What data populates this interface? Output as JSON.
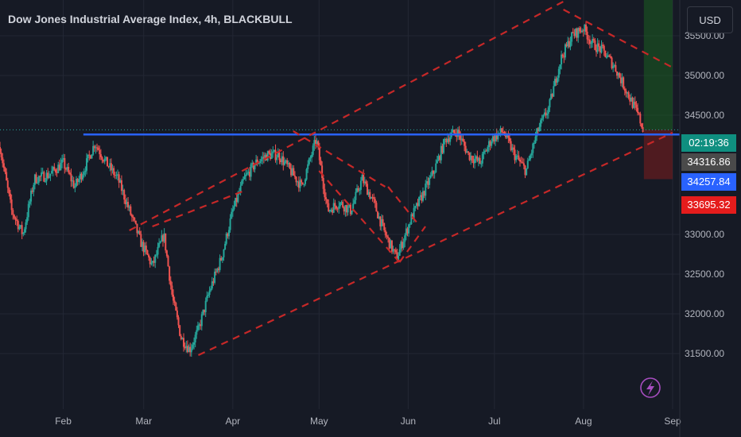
{
  "header": {
    "title": "Dow Jones Industrial Average Index, 4h, BLACKBULL",
    "currency": "USD"
  },
  "price_tags": {
    "countdown": "02:19:36",
    "last": "34316.86",
    "line": "34257.84",
    "low": "33695.32"
  },
  "colors": {
    "background": "#161a25",
    "up": "#26a69a",
    "down": "#ef5350",
    "channel": "#c62828",
    "horizontal_line": "#2962ff",
    "grid": "#232734"
  },
  "chart_data": {
    "type": "candlestick",
    "title": "Dow Jones Industrial Average Index, 4h, BLACKBULL",
    "y_ticks": [
      "35500.00",
      "35000.00",
      "34500.00",
      "33000.00",
      "32500.00",
      "32000.00",
      "31500.00"
    ],
    "x_ticks": [
      "Feb",
      "Mar",
      "Apr",
      "May",
      "Jun",
      "Jul",
      "Aug",
      "Sep"
    ],
    "ylim": [
      31250,
      35950
    ],
    "x_range": [
      "2023-01-10",
      "2023-09-01"
    ],
    "grid": true,
    "price_path": [
      [
        "2023-01-10",
        34100
      ],
      [
        "2023-01-14",
        33300
      ],
      [
        "2023-01-18",
        33000
      ],
      [
        "2023-01-22",
        33700
      ],
      [
        "2023-01-27",
        33750
      ],
      [
        "2023-02-01",
        33900
      ],
      [
        "2023-02-05",
        33600
      ],
      [
        "2023-02-08",
        33800
      ],
      [
        "2023-02-12",
        34150
      ],
      [
        "2023-02-16",
        33900
      ],
      [
        "2023-02-20",
        33700
      ],
      [
        "2023-02-24",
        33300
      ],
      [
        "2023-02-28",
        32900
      ],
      [
        "2023-03-04",
        32600
      ],
      [
        "2023-03-08",
        33000
      ],
      [
        "2023-03-11",
        32200
      ],
      [
        "2023-03-14",
        31700
      ],
      [
        "2023-03-17",
        31550
      ],
      [
        "2023-03-20",
        31800
      ],
      [
        "2023-03-24",
        32300
      ],
      [
        "2023-03-28",
        32700
      ],
      [
        "2023-04-01",
        33300
      ],
      [
        "2023-04-05",
        33700
      ],
      [
        "2023-04-09",
        33900
      ],
      [
        "2023-04-13",
        34000
      ],
      [
        "2023-04-17",
        34000
      ],
      [
        "2023-04-21",
        33800
      ],
      [
        "2023-04-25",
        33600
      ],
      [
        "2023-04-30",
        34200
      ],
      [
        "2023-05-04",
        33300
      ],
      [
        "2023-05-08",
        33400
      ],
      [
        "2023-05-12",
        33300
      ],
      [
        "2023-05-16",
        33700
      ],
      [
        "2023-05-20",
        33400
      ],
      [
        "2023-05-24",
        33000
      ],
      [
        "2023-05-28",
        32700
      ],
      [
        "2023-06-02",
        33200
      ],
      [
        "2023-06-06",
        33500
      ],
      [
        "2023-06-10",
        33800
      ],
      [
        "2023-06-14",
        34200
      ],
      [
        "2023-06-18",
        34300
      ],
      [
        "2023-06-22",
        34000
      ],
      [
        "2023-06-26",
        33900
      ],
      [
        "2023-06-30",
        34200
      ],
      [
        "2023-07-04",
        34300
      ],
      [
        "2023-07-08",
        34000
      ],
      [
        "2023-07-12",
        33800
      ],
      [
        "2023-07-16",
        34300
      ],
      [
        "2023-07-20",
        34600
      ],
      [
        "2023-07-24",
        35200
      ],
      [
        "2023-07-28",
        35500
      ],
      [
        "2023-08-01",
        35600
      ],
      [
        "2023-08-04",
        35400
      ],
      [
        "2023-08-08",
        35300
      ],
      [
        "2023-08-12",
        35100
      ],
      [
        "2023-08-16",
        34800
      ],
      [
        "2023-08-20",
        34500
      ],
      [
        "2023-08-22",
        34300
      ]
    ],
    "horizontal_level": 34257.84,
    "trend_lines": [
      {
        "style": "dashed",
        "from": [
          "2023-03-20",
          31480
        ],
        "to": [
          "2023-09-01",
          34280
        ]
      },
      {
        "style": "dashed",
        "from": [
          "2023-02-24",
          33050
        ],
        "to": [
          "2023-07-26",
          35950
        ]
      },
      {
        "style": "dashed",
        "from": [
          "2023-03-04",
          33100
        ],
        "to": [
          "2023-04-05",
          33550
        ]
      },
      {
        "style": "dashed",
        "from": [
          "2023-04-22",
          34300
        ],
        "to": [
          "2023-05-24",
          33600
        ]
      },
      {
        "style": "dashed",
        "from": [
          "2023-05-01",
          33800
        ],
        "to": [
          "2023-05-29",
          32650
        ]
      },
      {
        "style": "dashed",
        "from": [
          "2023-05-29",
          32650
        ],
        "to": [
          "2023-06-07",
          33100
        ]
      },
      {
        "style": "dashed",
        "from": [
          "2023-05-25",
          33600
        ],
        "to": [
          "2023-06-04",
          33150
        ]
      },
      {
        "style": "dashed",
        "from": [
          "2023-07-25",
          35830
        ],
        "to": [
          "2023-09-01",
          35100
        ]
      }
    ],
    "position_box": {
      "start": "2023-08-22",
      "end": "2023-09-01",
      "entry": 34316.86,
      "target": 35950,
      "stop": 33695.32
    }
  }
}
